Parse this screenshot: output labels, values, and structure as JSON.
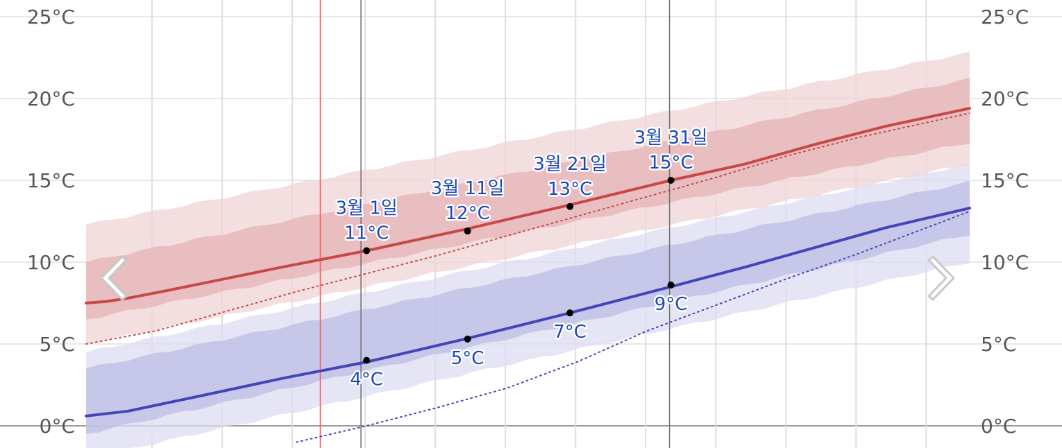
{
  "chart_data": {
    "type": "area",
    "ylim": [
      -1.5,
      25
    ],
    "y_ticks": [
      0,
      5,
      10,
      15,
      20,
      25
    ],
    "y_tick_labels": [
      "0°C",
      "5°C",
      "10°C",
      "15°C",
      "20°C",
      "25°C"
    ],
    "x_domain_days": [
      0,
      63
    ],
    "vertical_gridline_days": [
      4.7,
      9.7,
      14.7,
      19.9,
      24.9,
      29.9,
      34.9,
      39.9,
      44.9,
      49.9,
      54.9,
      59.9
    ],
    "marker_line_days": [
      19.6,
      41.6
    ],
    "today_line_day": 16.7,
    "high_band_outer": {
      "x": [
        0,
        63
      ],
      "low": [
        5.0,
        16.0
      ],
      "high": [
        12.3,
        22.8
      ],
      "color": "#f0d4d6"
    },
    "high_band_inner": {
      "x": [
        0,
        63
      ],
      "low": [
        6.5,
        17.3
      ],
      "high": [
        10.0,
        21.2
      ],
      "color": "#e6b3b6"
    },
    "low_band_outer": {
      "x": [
        0,
        63
      ],
      "low": [
        -2.0,
        10.0
      ],
      "high": [
        4.5,
        16.0
      ],
      "color": "#dcdcf1"
    },
    "low_band_inner": {
      "x": [
        0,
        63
      ],
      "low": [
        -0.5,
        11.7
      ],
      "high": [
        3.5,
        14.9
      ],
      "color": "#bcbce6"
    },
    "series": [
      {
        "name": "",
        "style": "solid",
        "color": "#c84848",
        "x": [
          0,
          1.5,
          3,
          6,
          10,
          14,
          20,
          27,
          34.5,
          41.7,
          47,
          52,
          57,
          63
        ],
        "values": [
          7.5,
          7.6,
          7.8,
          8.3,
          9.0,
          9.7,
          10.7,
          12.0,
          13.5,
          15.0,
          16.0,
          17.2,
          18.3,
          19.4
        ]
      },
      {
        "name": "",
        "style": "dotted",
        "color": "#c84848",
        "x": [
          0,
          5,
          10,
          15,
          20,
          25,
          30,
          35,
          40,
          45,
          50,
          55,
          63
        ],
        "values": [
          5.0,
          5.8,
          7.0,
          8.2,
          9.3,
          10.4,
          11.6,
          12.8,
          14.0,
          15.2,
          16.5,
          17.6,
          19.1
        ]
      },
      {
        "name": "",
        "style": "solid",
        "color": "#4444bb",
        "x": [
          0,
          3,
          8,
          14,
          20,
          27,
          34.5,
          41.7,
          47,
          52,
          57,
          63
        ],
        "values": [
          0.6,
          0.9,
          1.8,
          2.9,
          3.9,
          5.3,
          6.9,
          8.5,
          9.7,
          10.9,
          12.1,
          13.3
        ]
      },
      {
        "name": "",
        "style": "dotted",
        "color": "#4444bb",
        "x": [
          15,
          20,
          25,
          30,
          35,
          40,
          45,
          50,
          55,
          63
        ],
        "values": [
          -1.0,
          0.0,
          1.1,
          2.3,
          3.9,
          5.8,
          7.4,
          9.0,
          10.5,
          13.1
        ]
      }
    ],
    "annotations": {
      "high": [
        {
          "x": 20.0,
          "y": 10.7,
          "date": "3월 1일",
          "value": "11°C"
        },
        {
          "x": 27.2,
          "y": 11.9,
          "date": "3월 11일",
          "value": "12°C"
        },
        {
          "x": 34.5,
          "y": 13.4,
          "date": "3월 21일",
          "value": "13°C"
        },
        {
          "x": 41.7,
          "y": 15.0,
          "date": "3월 31일",
          "value": "15°C"
        }
      ],
      "low": [
        {
          "x": 20.0,
          "y": 4.0,
          "value": "4°C"
        },
        {
          "x": 27.2,
          "y": 5.3,
          "value": "5°C"
        },
        {
          "x": 34.5,
          "y": 6.9,
          "value": "7°C"
        },
        {
          "x": 41.7,
          "y": 8.6,
          "value": "9°C"
        }
      ]
    }
  },
  "nav": {
    "prev_icon": "chevron-left-icon",
    "next_icon": "chevron-right-icon"
  }
}
